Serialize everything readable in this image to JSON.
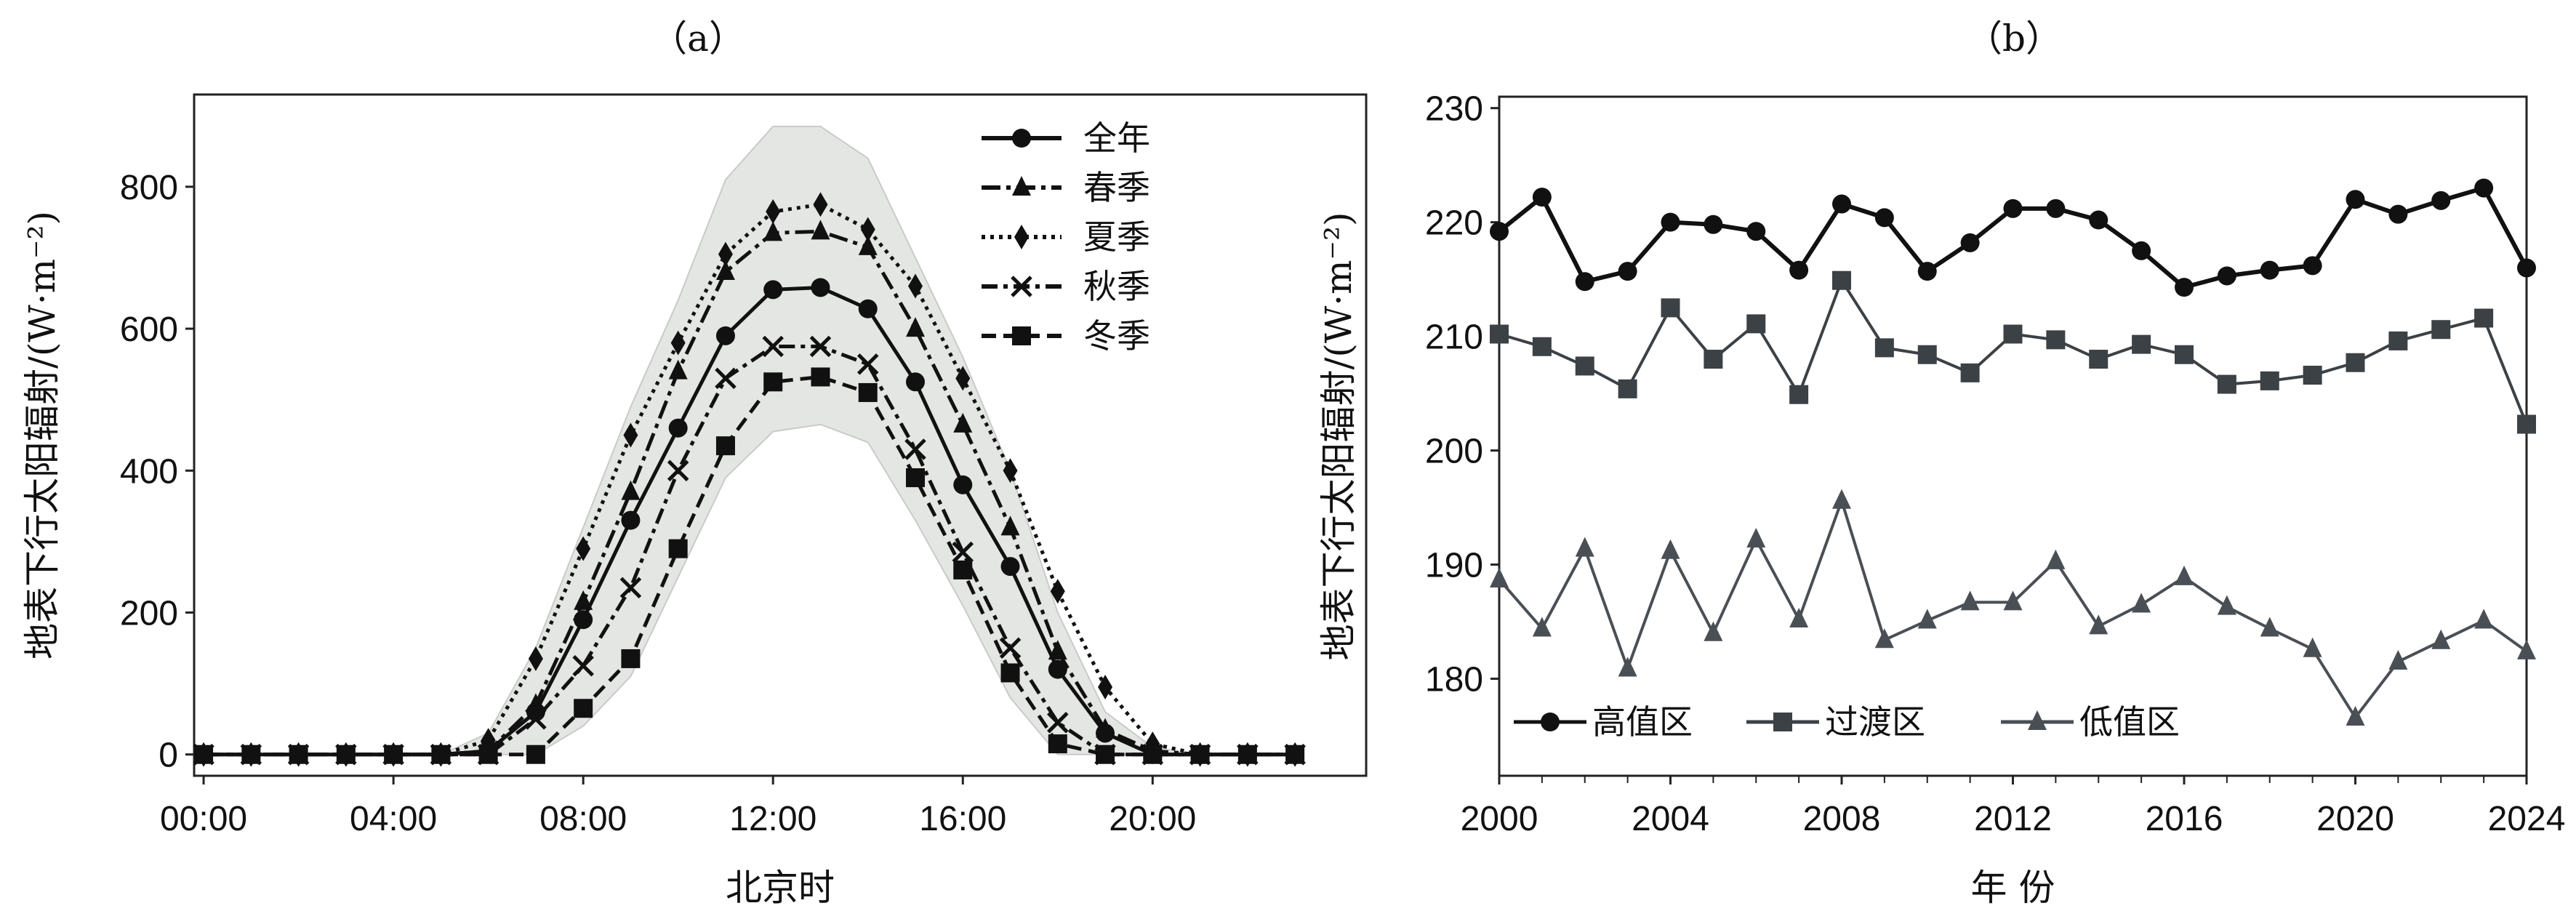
{
  "chart_data": [
    {
      "type": "line",
      "panel_label": "（a）",
      "title": "",
      "xlabel": "北京时",
      "ylabel": "地表下行太阳辐射/(W·m⁻²)",
      "x": [
        0,
        1,
        2,
        3,
        4,
        5,
        6,
        7,
        8,
        9,
        10,
        11,
        12,
        13,
        14,
        15,
        16,
        17,
        18,
        19,
        20,
        21,
        22,
        23
      ],
      "xlim": [
        -0.2,
        24.5
      ],
      "ylim": [
        -30,
        930
      ],
      "xticks": [
        0,
        4,
        8,
        12,
        16,
        20
      ],
      "xtick_labels": [
        "00:00",
        "04:00",
        "08:00",
        "12:00",
        "16:00",
        "20:00"
      ],
      "yticks": [
        0,
        200,
        400,
        600,
        800
      ],
      "ytick_labels": [
        "0",
        "200",
        "400",
        "600",
        "800"
      ],
      "legend_position": "top-right",
      "band": {
        "upper": [
          0,
          0,
          0,
          0,
          0,
          0,
          30,
          150,
          320,
          490,
          640,
          810,
          885,
          885,
          840,
          700,
          560,
          400,
          200,
          60,
          10,
          0,
          0,
          0
        ],
        "lower": [
          0,
          0,
          0,
          0,
          0,
          0,
          0,
          0,
          40,
          110,
          250,
          390,
          455,
          465,
          440,
          330,
          210,
          80,
          0,
          0,
          0,
          0,
          0,
          0
        ]
      },
      "series": [
        {
          "name": "全年",
          "marker": "circle",
          "dash": "",
          "values": [
            0,
            0,
            0,
            0,
            0,
            0,
            5,
            60,
            190,
            330,
            460,
            590,
            655,
            658,
            628,
            525,
            380,
            265,
            120,
            30,
            0,
            0,
            0,
            0
          ]
        },
        {
          "name": "春季",
          "marker": "triangle",
          "dash": "26 8 6 8",
          "values": [
            0,
            0,
            0,
            0,
            0,
            0,
            5,
            70,
            215,
            370,
            540,
            680,
            735,
            737,
            715,
            600,
            465,
            320,
            145,
            35,
            5,
            0,
            0,
            0
          ]
        },
        {
          "name": "夏季",
          "marker": "diamond",
          "dash": "5 7",
          "values": [
            0,
            0,
            0,
            0,
            0,
            0,
            20,
            135,
            290,
            450,
            580,
            705,
            765,
            775,
            740,
            660,
            530,
            400,
            230,
            95,
            15,
            0,
            0,
            0
          ]
        },
        {
          "name": "秋季",
          "marker": "x",
          "dash": "22 8 6 8",
          "values": [
            0,
            0,
            0,
            0,
            0,
            0,
            0,
            50,
            125,
            235,
            400,
            530,
            575,
            575,
            550,
            430,
            285,
            150,
            45,
            0,
            0,
            0,
            0,
            0
          ]
        },
        {
          "name": "冬季",
          "marker": "square",
          "dash": "20 10",
          "values": [
            0,
            0,
            0,
            0,
            0,
            0,
            0,
            0,
            65,
            135,
            290,
            435,
            525,
            532,
            510,
            390,
            260,
            115,
            15,
            0,
            0,
            0,
            0,
            0
          ]
        }
      ]
    },
    {
      "type": "line",
      "panel_label": "（b）",
      "title": "",
      "xlabel": "年  份",
      "ylabel": "地表下行太阳辐射/(W·m⁻²)",
      "x": [
        2000,
        2001,
        2002,
        2003,
        2004,
        2005,
        2006,
        2007,
        2008,
        2009,
        2010,
        2011,
        2012,
        2013,
        2014,
        2015,
        2016,
        2017,
        2018,
        2019,
        2020,
        2021,
        2022,
        2023,
        2024
      ],
      "xlim": [
        2000,
        2024
      ],
      "ylim": [
        171.5,
        231
      ],
      "xticks": [
        2000,
        2004,
        2008,
        2012,
        2016,
        2020,
        2024
      ],
      "xtick_labels": [
        "2000",
        "2004",
        "2008",
        "2012",
        "2016",
        "2020",
        "2024"
      ],
      "yticks": [
        180,
        190,
        200,
        210,
        220,
        230
      ],
      "ytick_labels": [
        "180",
        "190",
        "200",
        "210",
        "220",
        "230"
      ],
      "legend_position": "bottom-left",
      "series": [
        {
          "name": "高值区",
          "marker": "circle",
          "color": "#111111",
          "values": [
            219.2,
            222.2,
            214.8,
            215.7,
            220.0,
            219.8,
            219.2,
            215.8,
            221.6,
            220.4,
            215.7,
            218.2,
            221.2,
            221.2,
            220.2,
            217.5,
            214.3,
            215.3,
            215.8,
            216.2,
            222.0,
            220.7,
            221.9,
            223.0,
            216.0
          ]
        },
        {
          "name": "过渡区",
          "marker": "square",
          "color": "#3c4146",
          "values": [
            210.2,
            209.1,
            207.4,
            205.4,
            212.5,
            208.0,
            211.1,
            204.9,
            214.9,
            209.0,
            208.4,
            206.8,
            210.2,
            209.7,
            208.0,
            209.3,
            208.4,
            205.8,
            206.1,
            206.6,
            207.7,
            209.6,
            210.6,
            211.6,
            202.3
          ]
        },
        {
          "name": "低值区",
          "marker": "triangle",
          "color": "#4a4f55",
          "values": [
            188.7,
            184.4,
            191.4,
            180.9,
            191.2,
            184.0,
            192.2,
            185.2,
            195.6,
            183.4,
            185.1,
            186.7,
            186.7,
            190.3,
            184.6,
            186.5,
            188.9,
            186.3,
            184.4,
            182.6,
            176.6,
            181.5,
            183.3,
            185.1,
            182.4
          ]
        }
      ]
    }
  ]
}
